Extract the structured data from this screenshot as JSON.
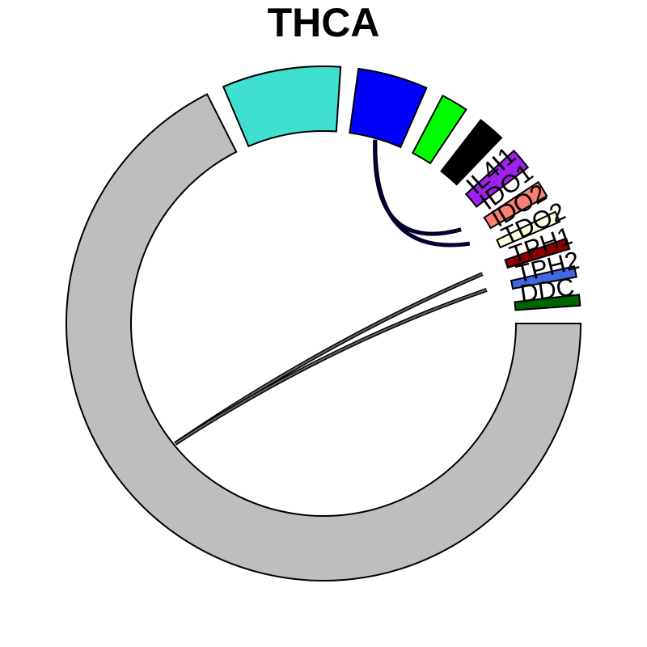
{
  "chart_data": {
    "type": "chord",
    "title": "THCA",
    "sectors": [
      {
        "name": "",
        "color": "#BEBEBE",
        "size": 200
      },
      {
        "name": "",
        "color": "#40E0D0",
        "size": 22
      },
      {
        "name": "",
        "color": "#0000FF",
        "size": 13
      },
      {
        "name": "",
        "color": "#00FF00",
        "size": 5
      },
      {
        "name": "",
        "color": "#000000",
        "size": 5
      },
      {
        "name": "",
        "color": "#A020F0",
        "size": 4
      },
      {
        "name": "",
        "color": "#FA8072",
        "size": 3
      },
      {
        "name": "",
        "color": "#FFFFE0",
        "size": 2
      },
      {
        "name": "",
        "color": "#8B0000",
        "size": 2
      },
      {
        "name": "",
        "color": "#4169E1",
        "size": 2
      },
      {
        "name": "",
        "color": "#006400",
        "size": 2
      }
    ],
    "gene_labels": [
      "IL4I1",
      "IDO1",
      "IDO2",
      "TDO2",
      "TPH1",
      "TPH2",
      "DDC"
    ],
    "links": [
      {
        "from": 2,
        "to_label": "IDO1",
        "color": "#000066"
      },
      {
        "from": 2,
        "to_label": "IDO2",
        "color": "#000066"
      },
      {
        "from": 0,
        "to_label": "TPH1",
        "color": "#666666"
      },
      {
        "from": 0,
        "to_label": "TPH2",
        "color": "#666666"
      }
    ]
  }
}
